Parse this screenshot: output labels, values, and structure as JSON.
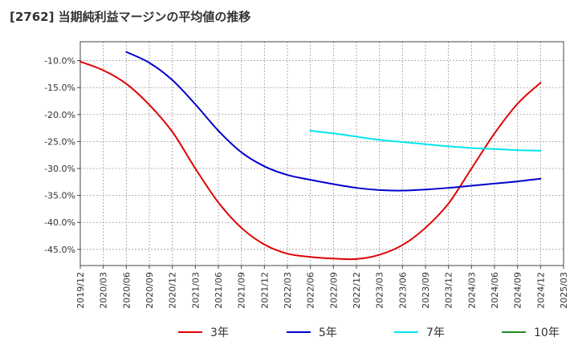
{
  "chart_data": {
    "type": "line",
    "title": "[2762]  当期純利益マージンの平均値の推移",
    "xlabel": "",
    "ylabel": "",
    "x_ticks": [
      "2019/12",
      "2020/03",
      "2020/06",
      "2020/09",
      "2020/12",
      "2021/03",
      "2021/06",
      "2021/09",
      "2021/12",
      "2022/03",
      "2022/06",
      "2022/09",
      "2022/12",
      "2023/03",
      "2023/06",
      "2023/09",
      "2023/12",
      "2024/03",
      "2024/06",
      "2024/09",
      "2024/12",
      "2025/03"
    ],
    "y_ticks": [
      "-10.0%",
      "-15.0%",
      "-20.0%",
      "-25.0%",
      "-30.0%",
      "-35.0%",
      "-40.0%",
      "-45.0%"
    ],
    "ylim": [
      -48,
      -6.5
    ],
    "grid": true,
    "legend_position": "bottom",
    "series": [
      {
        "name": "3年",
        "color": "#e00000",
        "x": [
          "2019/12",
          "2020/03",
          "2020/06",
          "2020/09",
          "2020/12",
          "2021/03",
          "2021/06",
          "2021/09",
          "2021/12",
          "2022/03",
          "2022/06",
          "2022/09",
          "2022/12",
          "2023/03",
          "2023/06",
          "2023/09",
          "2023/12",
          "2024/03",
          "2024/06",
          "2024/09",
          "2024/12"
        ],
        "values": [
          -10.2,
          -11.8,
          -14.3,
          -18.2,
          -23.2,
          -30.0,
          -36.3,
          -41.0,
          -44.1,
          -45.8,
          -46.4,
          -46.7,
          -46.8,
          -46.0,
          -44.2,
          -41.0,
          -36.5,
          -30.0,
          -23.5,
          -18.0,
          -14.1
        ]
      },
      {
        "name": "5年",
        "color": "#0000cc",
        "x": [
          "2020/06",
          "2020/09",
          "2020/12",
          "2021/03",
          "2021/06",
          "2021/09",
          "2021/12",
          "2022/03",
          "2022/06",
          "2022/09",
          "2022/12",
          "2023/03",
          "2023/06",
          "2023/09",
          "2023/12",
          "2024/03",
          "2024/06",
          "2024/09",
          "2024/12"
        ],
        "values": [
          -8.4,
          -10.4,
          -13.6,
          -18.1,
          -23.0,
          -27.0,
          -29.6,
          -31.2,
          -32.1,
          -32.9,
          -33.6,
          -34.0,
          -34.1,
          -33.9,
          -33.6,
          -33.2,
          -32.8,
          -32.4,
          -31.9
        ]
      },
      {
        "name": "7年",
        "color": "#00e5ee",
        "x": [
          "2022/06",
          "2022/09",
          "2022/12",
          "2023/03",
          "2023/06",
          "2023/09",
          "2023/12",
          "2024/03",
          "2024/06",
          "2024/09",
          "2024/12"
        ],
        "values": [
          -23.0,
          -23.5,
          -24.1,
          -24.7,
          -25.1,
          -25.5,
          -25.9,
          -26.2,
          -26.4,
          -26.6,
          -26.7
        ]
      },
      {
        "name": "10年",
        "color": "#228B22",
        "x": [],
        "values": []
      }
    ]
  }
}
